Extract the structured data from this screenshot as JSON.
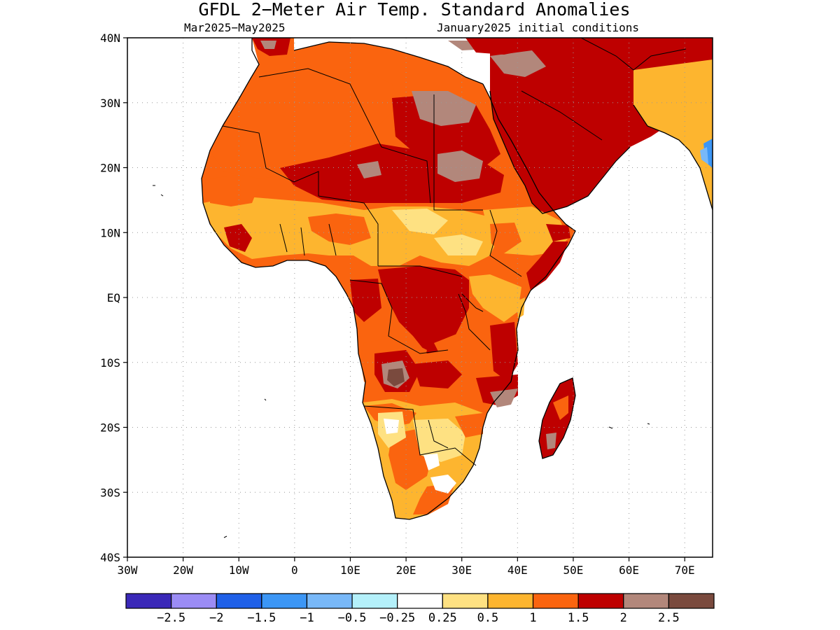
{
  "title": "GFDL 2−Meter Air Temp. Standard Anomalies",
  "subtitle_left": "Mar2025−May2025",
  "subtitle_right": "January2025 initial conditions",
  "axes": {
    "lat_labels": [
      "40N",
      "30N",
      "20N",
      "10N",
      "EQ",
      "10S",
      "20S",
      "30S",
      "40S"
    ],
    "lon_labels": [
      "30W",
      "20W",
      "10W",
      "0",
      "10E",
      "20E",
      "30E",
      "40E",
      "50E",
      "60E",
      "70E"
    ],
    "lat_values": [
      40,
      30,
      20,
      10,
      0,
      -10,
      -20,
      -30,
      -40
    ],
    "lon_values": [
      -30,
      -20,
      -10,
      0,
      10,
      20,
      30,
      40,
      50,
      60,
      70
    ],
    "lon_range": [
      -30,
      75
    ],
    "lat_range": [
      -40,
      40
    ],
    "grid": true
  },
  "legend": {
    "colors": [
      "#3a28b8",
      "#9b8cf5",
      "#1f60e8",
      "#3c96f5",
      "#78b8f8",
      "#b4f0fa",
      "#ffffff",
      "#fee182",
      "#fdb52f",
      "#fa640f",
      "#be0000",
      "#b2877b",
      "#7a4a3e"
    ],
    "labels": [
      "−2.5",
      "−2",
      "−1.5",
      "−1",
      "−0.5",
      "−0.25",
      "0.25",
      "0.5",
      "1",
      "1.5",
      "2",
      "2.5"
    ]
  },
  "palette": {
    "ocean": "#ffffff",
    "anom_025": "#fee182",
    "anom_05": "#fdb52f",
    "anom_1": "#fa640f",
    "anom_15": "#be0000",
    "anom_2": "#b2877b",
    "anom_25": "#7a4a3e",
    "cool_1": "#78b8f8",
    "cool_2": "#3c96f5"
  }
}
